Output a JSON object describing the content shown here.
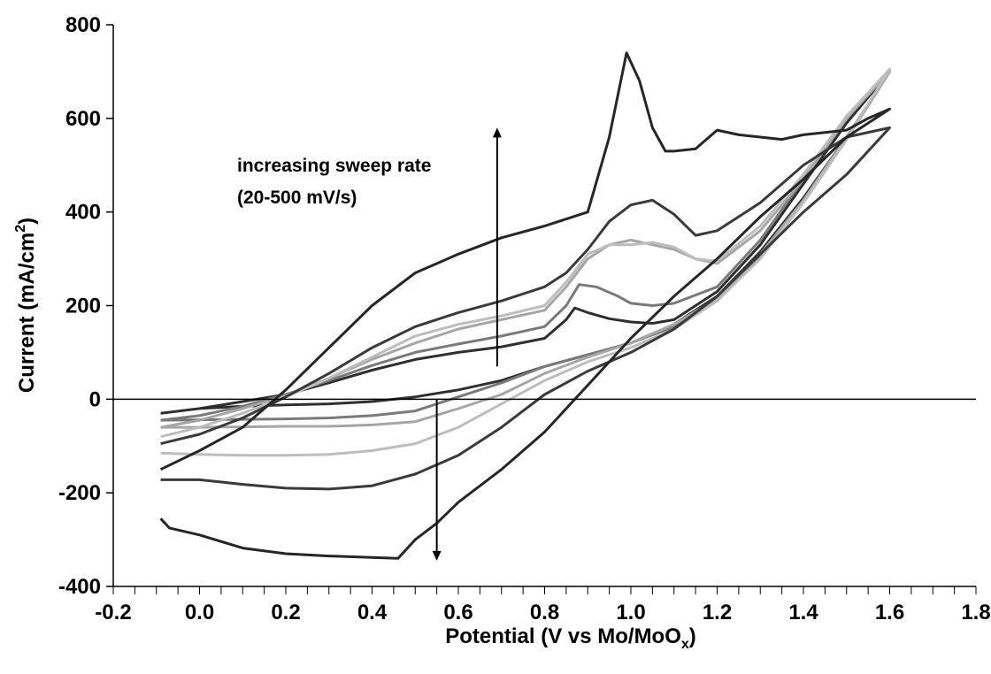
{
  "chart_data": {
    "type": "line",
    "title": "",
    "xlabel": {
      "main": "Potential (V vs Mo/MoO",
      "sub": "x",
      "end": ")"
    },
    "ylabel": {
      "main": "Current (mA/cm",
      "sup": "2",
      "end": ")"
    },
    "xlim": [
      -0.2,
      1.8
    ],
    "ylim": [
      -400,
      800
    ],
    "x_ticks": [
      -0.2,
      0.0,
      0.2,
      0.4,
      0.6,
      0.8,
      1.0,
      1.2,
      1.4,
      1.6,
      1.8
    ],
    "x_tick_labels": [
      "-0.2",
      "0.0",
      "0.2",
      "0.4",
      "0.6",
      "0.8",
      "1.0",
      "1.2",
      "1.4",
      "1.6",
      "1.8"
    ],
    "y_ticks": [
      -400,
      -200,
      0,
      200,
      400,
      600,
      800
    ],
    "y_tick_labels": [
      "-400",
      "-200",
      "0",
      "200",
      "400",
      "600",
      "800"
    ],
    "x_minor_step": 0.05,
    "zero_line": true,
    "grid": false,
    "legend": "none",
    "annotations": {
      "line1": "increasing sweep rate",
      "line2": "(20-500 mV/s)"
    },
    "arrows": [
      {
        "x": 0.69,
        "y_from": 70,
        "y_to": 580
      },
      {
        "x": 0.55,
        "y_from": 0,
        "y_to": -345
      }
    ],
    "series": [
      {
        "color": "#2f2f2f",
        "anodic": [
          [
            -0.09,
            -30
          ],
          [
            0.0,
            -20
          ],
          [
            0.1,
            -5
          ],
          [
            0.2,
            10
          ],
          [
            0.3,
            35
          ],
          [
            0.4,
            62
          ],
          [
            0.5,
            85
          ],
          [
            0.6,
            100
          ],
          [
            0.7,
            112
          ],
          [
            0.8,
            130
          ],
          [
            0.85,
            170
          ],
          [
            0.87,
            195
          ],
          [
            0.9,
            185
          ],
          [
            0.95,
            172
          ],
          [
            1.0,
            165
          ],
          [
            1.05,
            162
          ],
          [
            1.1,
            170
          ],
          [
            1.2,
            230
          ],
          [
            1.3,
            330
          ],
          [
            1.4,
            460
          ],
          [
            1.5,
            590
          ],
          [
            1.6,
            700
          ]
        ],
        "cathodic": [
          [
            1.6,
            700
          ],
          [
            1.5,
            560
          ],
          [
            1.4,
            430
          ],
          [
            1.3,
            315
          ],
          [
            1.2,
            220
          ],
          [
            1.1,
            160
          ],
          [
            1.0,
            120
          ],
          [
            0.9,
            95
          ],
          [
            0.8,
            70
          ],
          [
            0.7,
            40
          ],
          [
            0.6,
            20
          ],
          [
            0.5,
            5
          ],
          [
            0.4,
            -5
          ],
          [
            0.3,
            -10
          ],
          [
            0.2,
            -12
          ],
          [
            0.1,
            -15
          ],
          [
            0.0,
            -20
          ],
          [
            -0.09,
            -30
          ]
        ]
      },
      {
        "color": "#7a7a7a",
        "anodic": [
          [
            -0.09,
            -45
          ],
          [
            0.0,
            -35
          ],
          [
            0.1,
            -15
          ],
          [
            0.2,
            10
          ],
          [
            0.3,
            40
          ],
          [
            0.4,
            72
          ],
          [
            0.5,
            100
          ],
          [
            0.6,
            118
          ],
          [
            0.7,
            135
          ],
          [
            0.8,
            155
          ],
          [
            0.85,
            200
          ],
          [
            0.88,
            245
          ],
          [
            0.92,
            240
          ],
          [
            0.97,
            220
          ],
          [
            1.0,
            205
          ],
          [
            1.05,
            200
          ],
          [
            1.1,
            205
          ],
          [
            1.2,
            240
          ],
          [
            1.3,
            340
          ],
          [
            1.4,
            470
          ],
          [
            1.5,
            600
          ],
          [
            1.6,
            700
          ]
        ],
        "cathodic": [
          [
            1.6,
            700
          ],
          [
            1.5,
            555
          ],
          [
            1.4,
            420
          ],
          [
            1.3,
            305
          ],
          [
            1.2,
            210
          ],
          [
            1.1,
            155
          ],
          [
            1.0,
            120
          ],
          [
            0.9,
            95
          ],
          [
            0.8,
            70
          ],
          [
            0.7,
            35
          ],
          [
            0.6,
            5
          ],
          [
            0.5,
            -25
          ],
          [
            0.4,
            -35
          ],
          [
            0.3,
            -40
          ],
          [
            0.2,
            -42
          ],
          [
            0.1,
            -43
          ],
          [
            0.0,
            -44
          ],
          [
            -0.09,
            -45
          ]
        ]
      },
      {
        "color": "#a6a6a6",
        "anodic": [
          [
            -0.09,
            -60
          ],
          [
            0.0,
            -45
          ],
          [
            0.1,
            -20
          ],
          [
            0.2,
            8
          ],
          [
            0.3,
            45
          ],
          [
            0.4,
            85
          ],
          [
            0.5,
            120
          ],
          [
            0.6,
            150
          ],
          [
            0.7,
            170
          ],
          [
            0.8,
            190
          ],
          [
            0.85,
            240
          ],
          [
            0.9,
            300
          ],
          [
            0.95,
            330
          ],
          [
            1.0,
            340
          ],
          [
            1.05,
            330
          ],
          [
            1.1,
            320
          ],
          [
            1.15,
            300
          ],
          [
            1.2,
            290
          ],
          [
            1.3,
            360
          ],
          [
            1.4,
            470
          ],
          [
            1.5,
            600
          ],
          [
            1.6,
            700
          ]
        ],
        "cathodic": [
          [
            1.6,
            700
          ],
          [
            1.5,
            560
          ],
          [
            1.4,
            425
          ],
          [
            1.3,
            310
          ],
          [
            1.2,
            215
          ],
          [
            1.1,
            160
          ],
          [
            1.0,
            120
          ],
          [
            0.9,
            90
          ],
          [
            0.8,
            55
          ],
          [
            0.7,
            10
          ],
          [
            0.6,
            -20
          ],
          [
            0.5,
            -48
          ],
          [
            0.4,
            -55
          ],
          [
            0.3,
            -58
          ],
          [
            0.2,
            -58
          ],
          [
            0.1,
            -59
          ],
          [
            0.0,
            -60
          ],
          [
            -0.09,
            -60
          ]
        ]
      },
      {
        "color": "#bdbdbd",
        "anodic": [
          [
            -0.09,
            -80
          ],
          [
            0.0,
            -60
          ],
          [
            0.1,
            -30
          ],
          [
            0.2,
            5
          ],
          [
            0.3,
            45
          ],
          [
            0.4,
            90
          ],
          [
            0.5,
            135
          ],
          [
            0.6,
            160
          ],
          [
            0.7,
            178
          ],
          [
            0.8,
            200
          ],
          [
            0.85,
            250
          ],
          [
            0.9,
            310
          ],
          [
            0.95,
            330
          ],
          [
            1.0,
            330
          ],
          [
            1.05,
            335
          ],
          [
            1.1,
            325
          ],
          [
            1.15,
            300
          ],
          [
            1.2,
            295
          ],
          [
            1.3,
            370
          ],
          [
            1.4,
            480
          ],
          [
            1.5,
            605
          ],
          [
            1.6,
            705
          ]
        ],
        "cathodic": [
          [
            1.6,
            705
          ],
          [
            1.5,
            555
          ],
          [
            1.4,
            420
          ],
          [
            1.3,
            300
          ],
          [
            1.2,
            210
          ],
          [
            1.1,
            150
          ],
          [
            1.0,
            110
          ],
          [
            0.9,
            80
          ],
          [
            0.8,
            40
          ],
          [
            0.7,
            -10
          ],
          [
            0.6,
            -60
          ],
          [
            0.5,
            -95
          ],
          [
            0.4,
            -110
          ],
          [
            0.3,
            -118
          ],
          [
            0.2,
            -120
          ],
          [
            0.1,
            -120
          ],
          [
            0.0,
            -118
          ],
          [
            -0.09,
            -115
          ]
        ]
      },
      {
        "color": "#3a3a3a",
        "anodic": [
          [
            -0.09,
            -95
          ],
          [
            0.0,
            -75
          ],
          [
            0.1,
            -40
          ],
          [
            0.2,
            5
          ],
          [
            0.3,
            55
          ],
          [
            0.4,
            110
          ],
          [
            0.5,
            155
          ],
          [
            0.6,
            185
          ],
          [
            0.7,
            210
          ],
          [
            0.8,
            240
          ],
          [
            0.85,
            270
          ],
          [
            0.9,
            320
          ],
          [
            0.95,
            380
          ],
          [
            1.0,
            415
          ],
          [
            1.05,
            425
          ],
          [
            1.1,
            395
          ],
          [
            1.15,
            350
          ],
          [
            1.2,
            360
          ],
          [
            1.3,
            420
          ],
          [
            1.4,
            500
          ],
          [
            1.5,
            560
          ],
          [
            1.6,
            580
          ]
        ],
        "cathodic": [
          [
            1.6,
            580
          ],
          [
            1.5,
            480
          ],
          [
            1.4,
            400
          ],
          [
            1.3,
            310
          ],
          [
            1.2,
            220
          ],
          [
            1.1,
            150
          ],
          [
            1.0,
            100
          ],
          [
            0.9,
            60
          ],
          [
            0.8,
            10
          ],
          [
            0.7,
            -60
          ],
          [
            0.6,
            -120
          ],
          [
            0.5,
            -160
          ],
          [
            0.4,
            -185
          ],
          [
            0.3,
            -192
          ],
          [
            0.2,
            -190
          ],
          [
            0.1,
            -182
          ],
          [
            0.0,
            -172
          ],
          [
            -0.09,
            -172
          ]
        ]
      },
      {
        "color": "#262626",
        "anodic": [
          [
            -0.09,
            -150
          ],
          [
            0.0,
            -110
          ],
          [
            0.1,
            -60
          ],
          [
            0.2,
            20
          ],
          [
            0.3,
            110
          ],
          [
            0.4,
            200
          ],
          [
            0.5,
            270
          ],
          [
            0.6,
            310
          ],
          [
            0.7,
            345
          ],
          [
            0.8,
            370
          ],
          [
            0.9,
            400
          ],
          [
            0.95,
            560
          ],
          [
            0.99,
            740
          ],
          [
            1.02,
            680
          ],
          [
            1.05,
            580
          ],
          [
            1.08,
            530
          ],
          [
            1.1,
            530
          ],
          [
            1.15,
            535
          ],
          [
            1.2,
            575
          ],
          [
            1.25,
            565
          ],
          [
            1.3,
            560
          ],
          [
            1.35,
            555
          ],
          [
            1.4,
            565
          ],
          [
            1.45,
            570
          ],
          [
            1.5,
            575
          ],
          [
            1.55,
            600
          ],
          [
            1.6,
            620
          ]
        ],
        "cathodic": [
          [
            1.6,
            620
          ],
          [
            1.5,
            560
          ],
          [
            1.4,
            470
          ],
          [
            1.3,
            390
          ],
          [
            1.2,
            300
          ],
          [
            1.1,
            220
          ],
          [
            1.0,
            130
          ],
          [
            0.9,
            30
          ],
          [
            0.8,
            -70
          ],
          [
            0.7,
            -150
          ],
          [
            0.6,
            -220
          ],
          [
            0.55,
            -265
          ],
          [
            0.5,
            -300
          ],
          [
            0.46,
            -340
          ],
          [
            0.4,
            -338
          ],
          [
            0.3,
            -335
          ],
          [
            0.2,
            -330
          ],
          [
            0.1,
            -318
          ],
          [
            0.0,
            -290
          ],
          [
            -0.07,
            -275
          ],
          [
            -0.09,
            -255
          ]
        ]
      }
    ]
  }
}
